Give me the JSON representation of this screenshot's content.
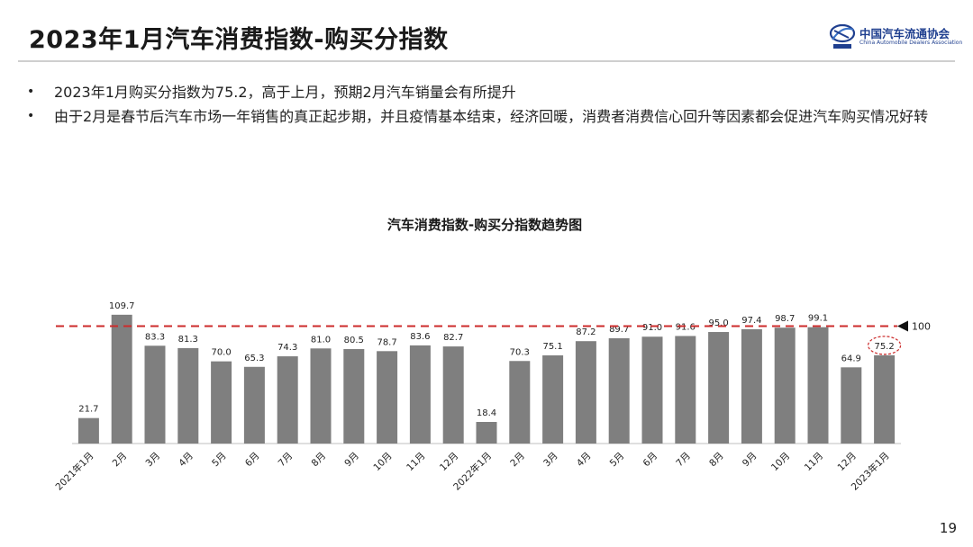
{
  "header": {
    "title": "2023年1月汽车消费指数-购买分指数",
    "logo_cn": "中国汽车流通协会",
    "logo_en": "China Automobile Dealers Association"
  },
  "bullets": [
    "2023年1月购买分指数为75.2，高于上月，预期2月汽车销量会有所提升",
    "由于2月是春节后汽车市场一年销售的真正起步期，并且疫情基本结束，经济回暖，消费者消费信心回升等因素都会促进汽车购买情况好转"
  ],
  "bullet_marker": "•",
  "chart_data": {
    "type": "bar",
    "title": "汽车消费指数-购买分指数趋势图",
    "categories": [
      "2021年1月",
      "2月",
      "3月",
      "4月",
      "5月",
      "6月",
      "7月",
      "8月",
      "9月",
      "10月",
      "11月",
      "12月",
      "2022年1月",
      "2月",
      "3月",
      "4月",
      "5月",
      "6月",
      "7月",
      "8月",
      "9月",
      "10月",
      "11月",
      "12月",
      "2023年1月"
    ],
    "values": [
      21.7,
      109.7,
      83.3,
      81.3,
      70.0,
      65.3,
      74.3,
      81.0,
      80.5,
      78.7,
      83.6,
      82.7,
      18.4,
      70.3,
      75.1,
      87.2,
      89.7,
      91.0,
      91.6,
      95.0,
      97.4,
      98.7,
      99.1,
      64.9,
      75.2
    ],
    "value_labels": [
      "21.7",
      "109.7",
      "83.3",
      "81.3",
      "70.0",
      "65.3",
      "74.3",
      "81.0",
      "80.5",
      "78.7",
      "83.6",
      "82.7",
      "18.4",
      "70.3",
      "75.1",
      "87.2",
      "89.7",
      "91.0",
      "91.6",
      "95.0",
      "97.4",
      "98.7",
      "99.1",
      "64.9",
      "75.2"
    ],
    "reference_line": {
      "value": 100,
      "label": "100",
      "color": "#cc2b2b",
      "style": "dashed"
    },
    "highlighted_index": 24,
    "bar_color": "#7f7f7f",
    "ylim": [
      0,
      110
    ],
    "grid": false,
    "legend": "none",
    "xlabel": "",
    "ylabel": ""
  },
  "page_number": "19"
}
